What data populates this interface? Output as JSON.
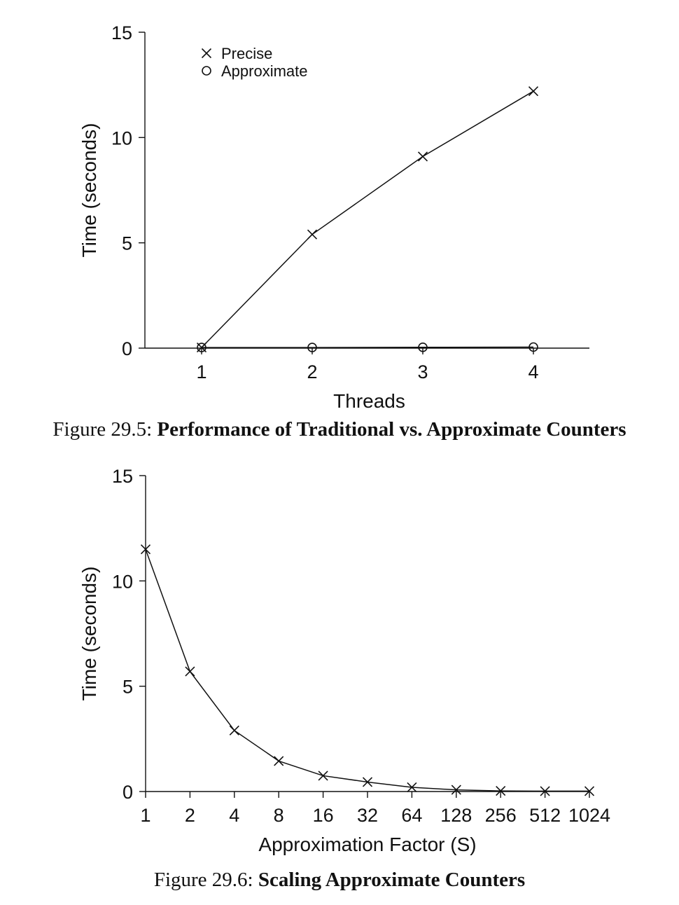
{
  "chart_data": [
    {
      "type": "line",
      "title": "",
      "xlabel": "Threads",
      "ylabel": "Time (seconds)",
      "x": [
        1,
        2,
        3,
        4
      ],
      "xlim": [
        0.5,
        4.5
      ],
      "ylim": [
        0,
        15
      ],
      "xticks": [
        1,
        2,
        3,
        4
      ],
      "yticks": [
        0,
        5,
        10,
        15
      ],
      "grid": false,
      "legend_position": "top-left",
      "series": [
        {
          "name": "Precise",
          "marker": "x",
          "values": [
            0.03,
            5.4,
            9.1,
            12.2
          ]
        },
        {
          "name": "Approximate",
          "marker": "o",
          "values": [
            0.03,
            0.03,
            0.04,
            0.05
          ]
        }
      ]
    },
    {
      "type": "line",
      "title": "",
      "xlabel": "Approximation Factor (S)",
      "ylabel": "Time (seconds)",
      "x": [
        1,
        2,
        4,
        8,
        16,
        32,
        64,
        128,
        256,
        512,
        1024
      ],
      "x_scale": "log2",
      "ylim": [
        0,
        15
      ],
      "yticks": [
        0,
        5,
        10,
        15
      ],
      "grid": false,
      "series": [
        {
          "marker": "x",
          "values": [
            11.5,
            5.7,
            2.9,
            1.45,
            0.75,
            0.45,
            0.2,
            0.08,
            0.03,
            0.02,
            0.02
          ]
        }
      ]
    }
  ],
  "captions": {
    "fig1_label": "Figure 29.5: ",
    "fig1_title": "Performance of Traditional vs. Approximate Counters",
    "fig2_label": "Figure 29.6: ",
    "fig2_title": "Scaling Approximate Counters"
  }
}
